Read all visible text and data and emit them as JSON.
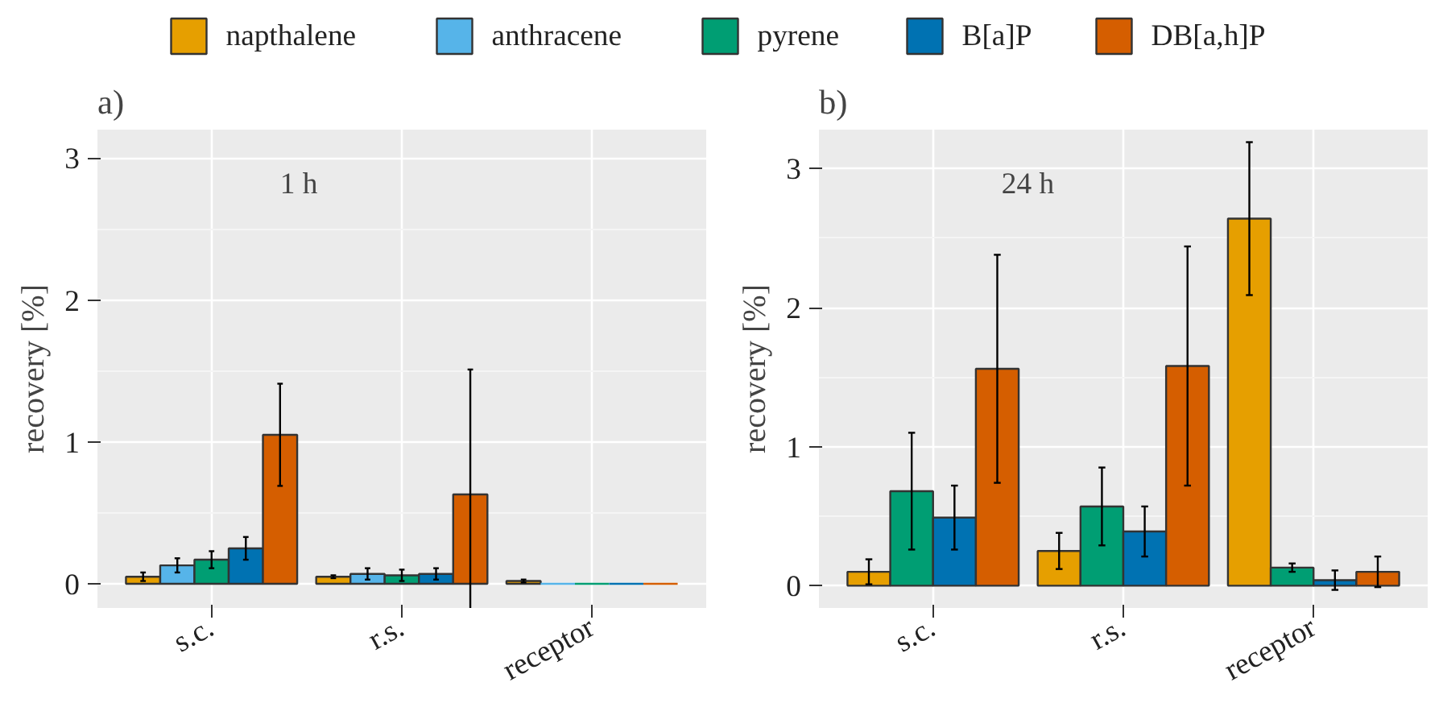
{
  "chart_data": [
    {
      "type": "bar",
      "title": "a)",
      "ylabel": "recovery [%]",
      "annotations": [
        "1 h"
      ],
      "categories": [
        "s.c.",
        "r.s.",
        "receptor"
      ],
      "ylim": [
        -0.17,
        3.2
      ],
      "yticks": [
        0,
        1,
        2,
        3
      ],
      "grid": true,
      "legend": "top",
      "series": [
        {
          "name": "napthalene",
          "color": "#e69f00",
          "values": [
            0.05,
            0.05,
            0.02
          ],
          "errors": [
            0.03,
            0.01,
            0.01
          ]
        },
        {
          "name": "anthracene",
          "color": "#56b4e9",
          "values": [
            0.13,
            0.07,
            0
          ],
          "errors": [
            0.05,
            0.04,
            null
          ]
        },
        {
          "name": "pyrene",
          "color": "#009e73",
          "values": [
            0.17,
            0.06,
            0
          ],
          "errors": [
            0.06,
            0.04,
            null
          ]
        },
        {
          "name": "B[a]P",
          "color": "#0072b2",
          "values": [
            0.25,
            0.07,
            0
          ],
          "errors": [
            0.08,
            0.04,
            null
          ]
        },
        {
          "name": "DB[a,h]P",
          "color": "#d55e00",
          "values": [
            1.05,
            0.63,
            0
          ],
          "errors": [
            0.36,
            0.88,
            null
          ]
        }
      ]
    },
    {
      "type": "bar",
      "title": "b)",
      "ylabel": "recovery [%]",
      "annotations": [
        "24 h"
      ],
      "categories": [
        "s.c.",
        "r.s.",
        "receptor"
      ],
      "ylim": [
        -0.16,
        3.28
      ],
      "yticks": [
        0,
        1,
        2,
        3
      ],
      "grid": true,
      "series": [
        {
          "color": "#e69f00",
          "values": [
            0.1,
            0.25,
            2.64
          ],
          "errors": [
            0.09,
            0.13,
            0.55
          ]
        },
        {
          "color": "#009e73",
          "values": [
            0.68,
            0.57,
            0.13
          ],
          "errors": [
            0.42,
            0.28,
            0.03
          ]
        },
        {
          "color": "#0072b2",
          "values": [
            0.49,
            0.39,
            0.04
          ],
          "errors": [
            0.23,
            0.18,
            0.07
          ]
        },
        {
          "color": "#d55e00",
          "values": [
            1.56,
            1.58,
            0.1
          ],
          "errors": [
            0.82,
            0.86,
            0.11
          ]
        }
      ]
    }
  ]
}
